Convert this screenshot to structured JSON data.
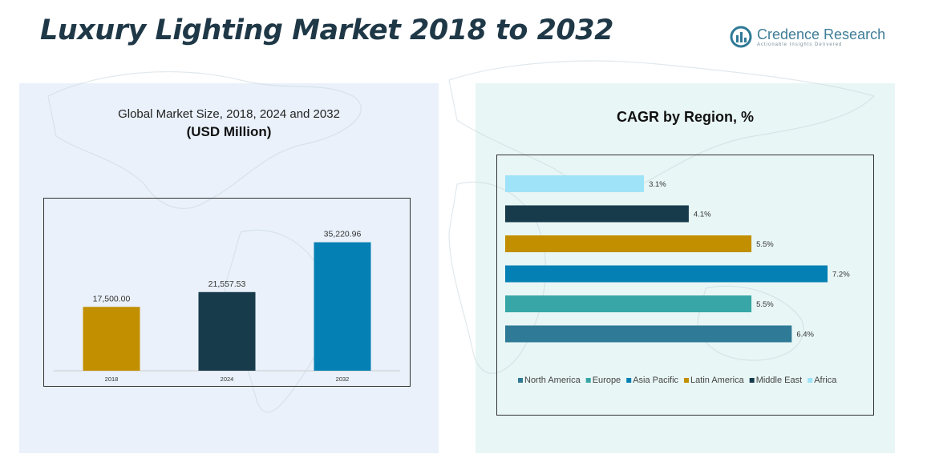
{
  "header": {
    "title": "Luxury Lighting Market 2018 to 2032"
  },
  "brand": {
    "name": "Credence Research",
    "tagline": "Actionable Insights Delivered",
    "logo_icon": "credence-logo-icon"
  },
  "left_panel": {
    "subtitle": "Global Market Size, 2018, 2024 and 2032",
    "unit": "(USD Million)"
  },
  "right_panel": {
    "title": "CAGR by Region, %"
  },
  "colors": {
    "accent_title": "#1f3847",
    "north_america": "#2f7a96",
    "europe": "#38a6a6",
    "asia_pacific": "#0580b4",
    "latin_america": "#c28f00",
    "middle_east": "#173b4b",
    "africa": "#9ee3f7"
  },
  "chart_data": [
    {
      "type": "bar",
      "title": "Global Market Size, 2018, 2024 and 2032",
      "ylabel": "(USD Million)",
      "categories": [
        "2018",
        "2024",
        "2032"
      ],
      "values": [
        17500.0,
        21557.53,
        35220.96
      ],
      "value_labels": [
        "17,500.00",
        "21,557.53",
        "35,220.96"
      ],
      "bar_colors": [
        "#c28f00",
        "#173b4b",
        "#0580b4"
      ],
      "ylim": [
        0,
        45000
      ],
      "grid": false,
      "legend": "none"
    },
    {
      "type": "bar",
      "orientation": "horizontal",
      "title": "CAGR by Region, %",
      "categories": [
        "Africa",
        "Middle East",
        "Latin America",
        "Asia Pacific",
        "Europe",
        "North America"
      ],
      "values": [
        3.1,
        4.1,
        5.5,
        7.2,
        5.5,
        6.4
      ],
      "value_labels": [
        "3.1%",
        "4.1%",
        "5.5%",
        "7.2%",
        "5.5%",
        "6.4%"
      ],
      "bar_colors": [
        "#9ee3f7",
        "#173b4b",
        "#c28f00",
        "#0580b4",
        "#38a6a6",
        "#2f7a96"
      ],
      "xlim": [
        0,
        7.2
      ],
      "grid": false,
      "legend": "bottom",
      "legend_entries": [
        {
          "label": "North America",
          "color": "#2f7a96"
        },
        {
          "label": "Europe",
          "color": "#38a6a6"
        },
        {
          "label": "Asia Pacific",
          "color": "#0580b4"
        },
        {
          "label": "Latin America",
          "color": "#c28f00"
        },
        {
          "label": "Middle East",
          "color": "#173b4b"
        },
        {
          "label": "Africa",
          "color": "#9ee3f7"
        }
      ]
    }
  ]
}
